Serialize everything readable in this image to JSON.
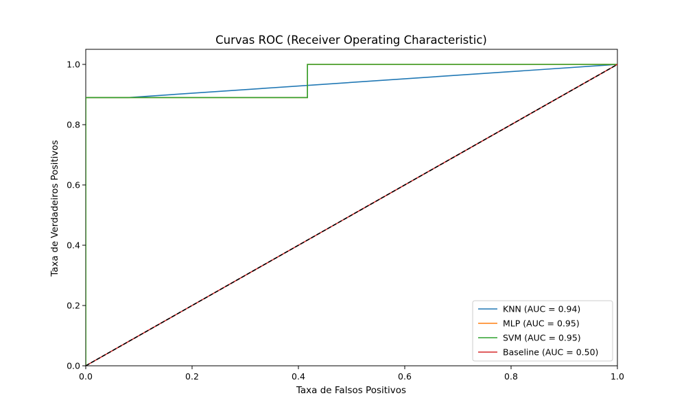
{
  "chart_data": {
    "type": "line",
    "title": "Curvas ROC (Receiver Operating Characteristic)",
    "xlabel": "Taxa de Falsos Positivos",
    "ylabel": "Taxa de Verdadeiros Positivos",
    "xlim": [
      0.0,
      1.0
    ],
    "ylim": [
      0.0,
      1.05
    ],
    "xticks": [
      0.0,
      0.2,
      0.4,
      0.6,
      0.8,
      1.0
    ],
    "yticks": [
      0.0,
      0.2,
      0.4,
      0.6,
      0.8,
      1.0
    ],
    "xtick_labels": [
      "0.0",
      "0.2",
      "0.4",
      "0.6",
      "0.8",
      "1.0"
    ],
    "ytick_labels": [
      "0.0",
      "0.2",
      "0.4",
      "0.6",
      "0.8",
      "1.0"
    ],
    "grid": false,
    "legend_position": "bottom-right",
    "series": [
      {
        "name": "KNN (AUC = 0.94)",
        "color": "#1f77b4",
        "dash": "solid",
        "x": [
          0.0,
          0.0,
          0.08,
          1.0
        ],
        "y": [
          0.0,
          0.89,
          0.89,
          1.0
        ]
      },
      {
        "name": "MLP (AUC = 0.95)",
        "color": "#ff7f0e",
        "dash": "solid",
        "x": [
          0.0,
          0.0,
          0.417,
          0.417,
          1.0
        ],
        "y": [
          0.0,
          0.89,
          0.89,
          1.0,
          1.0
        ]
      },
      {
        "name": "SVM (AUC = 0.95)",
        "color": "#2ca02c",
        "dash": "solid",
        "x": [
          0.0,
          0.0,
          0.417,
          0.417,
          1.0
        ],
        "y": [
          0.0,
          0.89,
          0.89,
          1.0,
          1.0
        ]
      },
      {
        "name": "Baseline (AUC = 0.50)",
        "color": "#d62728",
        "dash": "solid",
        "x": [
          0.0,
          1.0
        ],
        "y": [
          0.0,
          1.0
        ]
      }
    ],
    "reference_line": {
      "color": "#000000",
      "dash": "dashed",
      "x": [
        0.0,
        1.0
      ],
      "y": [
        0.0,
        1.0
      ]
    }
  }
}
